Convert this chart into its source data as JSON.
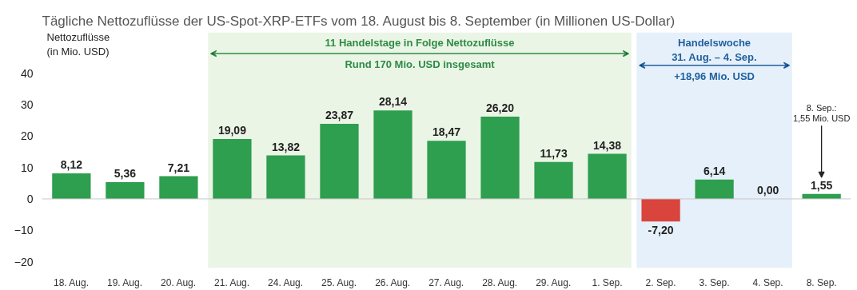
{
  "chart_data": {
    "type": "bar",
    "title": "Tägliche Nettozuflüsse der US-Spot-XRP-ETFs vom 18. August bis 8. September (in Millionen US-Dollar)",
    "ylabel": "Nettozuflüsse\n(in Mio. USD)",
    "categories": [
      "18. Aug.",
      "19. Aug.",
      "20. Aug.",
      "21. Aug.",
      "24. Aug.",
      "25. Aug.",
      "26. Aug.",
      "27. Aug.",
      "28. Aug.",
      "29. Aug.",
      "1. Sep.",
      "2. Sep.",
      "3. Sep.",
      "4. Sep.",
      "8. Sep."
    ],
    "values": [
      8.12,
      5.36,
      7.21,
      19.09,
      13.82,
      23.87,
      28.14,
      18.47,
      26.2,
      11.73,
      14.38,
      -7.2,
      6.14,
      0.0,
      1.55
    ],
    "colors": [
      "#2e9e4f",
      "#2e9e4f",
      "#2e9e4f",
      "#2e9e4f",
      "#2e9e4f",
      "#2e9e4f",
      "#2e9e4f",
      "#2e9e4f",
      "#2e9e4f",
      "#2e9e4f",
      "#2e9e4f",
      "#d9443c",
      "#2e9e4f",
      "#2e9e4f",
      "#2e9e4f"
    ],
    "value_labels": [
      "8,12",
      "5,36",
      "7,21",
      "19,09",
      "13,82",
      "23,87",
      "28,14",
      "18,47",
      "26,20",
      "11,73",
      "14,38",
      "-7,20",
      "6,14",
      "0,00",
      "1,55"
    ],
    "ylim": [
      -22,
      53
    ],
    "yticks": [
      -20,
      -10,
      0,
      10,
      20,
      30,
      40
    ],
    "grid": false,
    "ref_lines": [
      {
        "axis": "y",
        "value": 0,
        "color": "#c8c8c8"
      }
    ],
    "bands": [
      {
        "axis": "x",
        "from": "21. Aug.",
        "to": "1. Sep.",
        "label": "11 Handelstage in Folge Nettozuflüsse",
        "color": "#eaf5e6"
      },
      {
        "axis": "x",
        "from": "2. Sep.",
        "to": "4. Sep.",
        "label": "Handelswoche\n31. Aug. – 4. Sep.",
        "color": "#e6f0fa"
      }
    ],
    "annotations": [
      "Rund 170 Mio. USD insgesamt",
      "+18,96 Mio. USD",
      "8. Sep.:\n1,55 Mio. USD"
    ]
  }
}
